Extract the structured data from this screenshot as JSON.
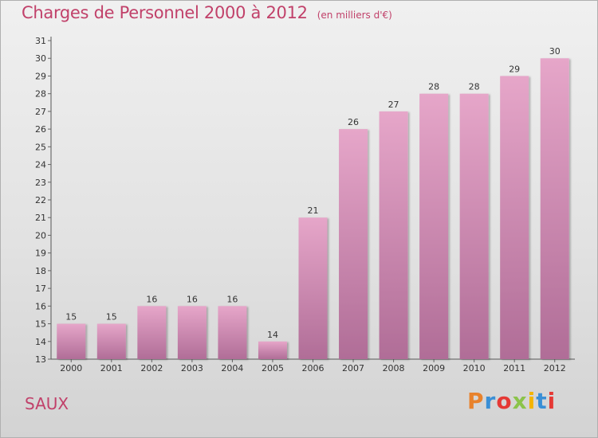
{
  "header": {
    "title": "Charges de Personnel 2000 à 2012",
    "subtitle": "(en milliers d'€)"
  },
  "footer": {
    "commune": "SAUX",
    "logo_text": "Proxiti",
    "logo_colors": [
      "#e8822c",
      "#3a8fd6",
      "#e53935",
      "#8bc34a",
      "#f4b400",
      "#3a8fd6",
      "#e53935"
    ]
  },
  "colors": {
    "title": "#c1416a",
    "bar_top": "#e6a6c9",
    "bar_bottom": "#b06d97",
    "axis": "#555555",
    "grid_tick": "#666666"
  },
  "chart_data": {
    "type": "bar",
    "categories": [
      "2000",
      "2001",
      "2002",
      "2003",
      "2004",
      "2005",
      "2006",
      "2007",
      "2008",
      "2009",
      "2010",
      "2011",
      "2012"
    ],
    "values": [
      15,
      15,
      16,
      16,
      16,
      14,
      21,
      26,
      27,
      28,
      28,
      29,
      30
    ],
    "ylim": [
      13,
      31
    ],
    "yticks": [
      13,
      14,
      15,
      16,
      17,
      18,
      19,
      20,
      21,
      22,
      23,
      24,
      25,
      26,
      27,
      28,
      29,
      30,
      31
    ],
    "grid": false,
    "data_labels": true
  }
}
